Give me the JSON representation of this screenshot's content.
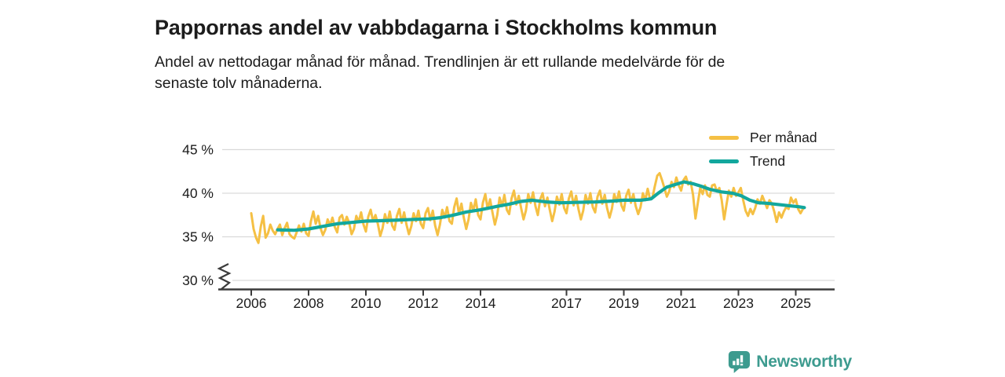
{
  "header": {
    "title": "Pappornas andel av vabbdagarna i Stockholms kommun",
    "subtitle_line1": "Andel av nettodagar månad för månad. Trendlinjen är ett rullande medelvärde för de",
    "subtitle_line2": "senaste tolv månaderna."
  },
  "footer": {
    "brand": "Newsworthy",
    "brand_color": "#3d9b8f",
    "icon": "newsworthy-speech-bubble-bar-chart-icon"
  },
  "colors": {
    "per_month_line": "#F5C044",
    "trend_line": "#12A79D",
    "gridline": "#d9d9d9",
    "axis": "#3b3b3b",
    "text": "#1c1c1c"
  },
  "chart_data": {
    "type": "line",
    "title": "Pappornas andel av vabbdagarna i Stockholms kommun",
    "xlabel": "",
    "ylabel": "",
    "y_unit": "%",
    "ylim": [
      30,
      46.5
    ],
    "axis_break_at_bottom": true,
    "grid": "horizontal",
    "legend_position": "top-right",
    "y_ticks": [
      {
        "value": 45,
        "label": "45 %"
      },
      {
        "value": 40,
        "label": "40 %"
      },
      {
        "value": 35,
        "label": "35 %"
      },
      {
        "value": 30,
        "label": "30 %"
      }
    ],
    "x_ticks": [
      {
        "year": 2006,
        "label": "2006"
      },
      {
        "year": 2008,
        "label": "2008"
      },
      {
        "year": 2010,
        "label": "2010"
      },
      {
        "year": 2012,
        "label": "2012"
      },
      {
        "year": 2014,
        "label": "2014"
      },
      {
        "year": 2017,
        "label": "2017"
      },
      {
        "year": 2019,
        "label": "2019"
      },
      {
        "year": 2021,
        "label": "2021"
      },
      {
        "year": 2023,
        "label": "2023"
      },
      {
        "year": 2025,
        "label": "2025"
      }
    ],
    "series": [
      {
        "name": "Per månad",
        "color": "#F5C044",
        "start_year": 2006,
        "interval": "monthly",
        "values": [
          37.7,
          35.9,
          34.9,
          34.3,
          36.2,
          37.4,
          34.9,
          35.4,
          36.4,
          35.7,
          35.3,
          35.9,
          36.4,
          35.2,
          36.0,
          36.6,
          35.3,
          35.0,
          34.8,
          35.5,
          36.3,
          35.6,
          36.5,
          35.4,
          35.1,
          36.8,
          37.9,
          36.5,
          37.4,
          36.0,
          35.2,
          35.8,
          37.0,
          36.3,
          37.2,
          36.1,
          35.5,
          37.2,
          37.5,
          36.4,
          37.3,
          36.6,
          35.3,
          35.9,
          37.4,
          36.7,
          37.8,
          36.4,
          35.6,
          37.3,
          38.1,
          36.8,
          37.5,
          36.5,
          35.1,
          36.0,
          37.6,
          36.6,
          37.9,
          36.3,
          35.8,
          37.4,
          38.2,
          36.6,
          37.8,
          36.4,
          35.3,
          36.2,
          37.7,
          36.8,
          38.0,
          36.5,
          36.0,
          37.7,
          38.3,
          36.9,
          38.0,
          36.3,
          35.2,
          36.4,
          38.1,
          37.2,
          38.4,
          36.8,
          36.5,
          38.4,
          39.4,
          37.6,
          38.8,
          37.2,
          35.9,
          37.0,
          38.9,
          38.0,
          39.3,
          37.5,
          37.0,
          38.9,
          39.9,
          38.2,
          39.3,
          37.8,
          36.4,
          37.5,
          39.5,
          38.5,
          39.8,
          38.1,
          37.6,
          39.4,
          40.3,
          38.7,
          39.7,
          38.3,
          37.0,
          38.0,
          39.9,
          38.9,
          40.1,
          38.5,
          37.5,
          39.3,
          40.0,
          38.5,
          39.5,
          38.1,
          36.8,
          37.9,
          39.6,
          38.7,
          39.9,
          38.3,
          37.7,
          39.4,
          40.2,
          38.6,
          39.7,
          38.2,
          37.0,
          38.0,
          39.8,
          38.8,
          40.0,
          38.4,
          37.8,
          39.6,
          40.3,
          38.8,
          39.8,
          38.3,
          37.2,
          38.2,
          39.9,
          39.0,
          40.2,
          38.6,
          38.0,
          39.7,
          40.4,
          38.9,
          39.9,
          38.5,
          37.6,
          38.4,
          40.0,
          39.2,
          40.5,
          39.3,
          39.5,
          40.8,
          42.0,
          42.3,
          41.5,
          40.6,
          39.6,
          40.2,
          41.3,
          40.7,
          41.8,
          40.9,
          40.3,
          41.5,
          41.9,
          41.0,
          41.3,
          39.8,
          37.1,
          38.9,
          40.6,
          39.9,
          40.9,
          39.8,
          39.6,
          40.9,
          41.0,
          40.2,
          40.6,
          39.2,
          37.0,
          38.7,
          40.3,
          39.6,
          40.6,
          39.7,
          40.1,
          40.6,
          39.2,
          38.0,
          37.4,
          38.2,
          37.6,
          38.3,
          39.3,
          38.8,
          39.7,
          39.0,
          38.3,
          39.2,
          38.8,
          37.9,
          36.7,
          37.8,
          37.2,
          37.9,
          38.4,
          38.2,
          39.5,
          38.9,
          39.3,
          38.2,
          37.7,
          38.2
        ]
      },
      {
        "name": "Trend",
        "color": "#12A79D",
        "interval": "anchor-points",
        "points": [
          [
            2006.92,
            35.8
          ],
          [
            2007.5,
            35.75
          ],
          [
            2008.0,
            35.9
          ],
          [
            2008.5,
            36.2
          ],
          [
            2009.0,
            36.5
          ],
          [
            2009.5,
            36.65
          ],
          [
            2010.0,
            36.8
          ],
          [
            2010.5,
            36.85
          ],
          [
            2011.0,
            36.9
          ],
          [
            2011.7,
            37.0
          ],
          [
            2012.2,
            37.05
          ],
          [
            2012.6,
            37.2
          ],
          [
            2013.0,
            37.45
          ],
          [
            2013.5,
            37.85
          ],
          [
            2014.0,
            38.1
          ],
          [
            2014.6,
            38.5
          ],
          [
            2015.0,
            38.75
          ],
          [
            2015.4,
            39.05
          ],
          [
            2015.8,
            39.2
          ],
          [
            2016.3,
            39.0
          ],
          [
            2016.8,
            38.9
          ],
          [
            2017.3,
            38.95
          ],
          [
            2018.0,
            39.0
          ],
          [
            2018.6,
            39.1
          ],
          [
            2019.0,
            39.2
          ],
          [
            2019.6,
            39.2
          ],
          [
            2019.95,
            39.35
          ],
          [
            2020.2,
            40.0
          ],
          [
            2020.5,
            40.7
          ],
          [
            2020.8,
            41.0
          ],
          [
            2021.1,
            41.3
          ],
          [
            2021.4,
            41.1
          ],
          [
            2021.7,
            40.8
          ],
          [
            2022.0,
            40.45
          ],
          [
            2022.4,
            40.15
          ],
          [
            2022.8,
            40.0
          ],
          [
            2023.1,
            39.7
          ],
          [
            2023.4,
            39.2
          ],
          [
            2023.7,
            38.9
          ],
          [
            2024.0,
            38.85
          ],
          [
            2024.4,
            38.7
          ],
          [
            2024.8,
            38.55
          ],
          [
            2025.1,
            38.45
          ],
          [
            2025.3,
            38.35
          ]
        ]
      }
    ]
  }
}
